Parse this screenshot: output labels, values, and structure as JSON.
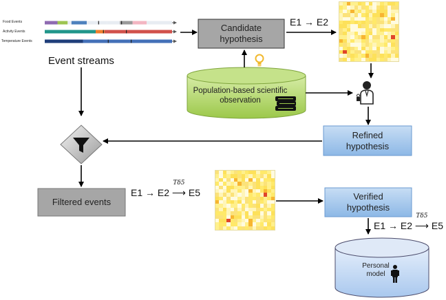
{
  "streams": [
    {
      "label": "Food Events",
      "segments": [
        {
          "color": "#8e6ab1",
          "w": 10
        },
        {
          "color": "#9dc451",
          "w": 8
        },
        {
          "color": "#e8ecf2",
          "w": 3
        },
        {
          "color": "#4e81bd",
          "w": 12
        },
        {
          "color": "#e8ecf2",
          "w": 6
        },
        {
          "color": "#e8ecf2",
          "w": 10
        },
        {
          "color": "#e8ecf2",
          "w": 10
        },
        {
          "color": "#9a9a9a",
          "w": 10
        },
        {
          "color": "#f3b6c2",
          "w": 11
        },
        {
          "color": "#e8ecf2",
          "w": 20
        }
      ]
    },
    {
      "label": "Activity Events",
      "segments": [
        {
          "color": "#21968a",
          "w": 40
        },
        {
          "color": "#f07f2e",
          "w": 7
        },
        {
          "color": "#d1524c",
          "w": 53
        }
      ]
    },
    {
      "label": "Temperature Events",
      "segments": [
        {
          "color": "#1f3e7a",
          "w": 30
        },
        {
          "color": "#4470b8",
          "w": 70
        }
      ]
    }
  ],
  "labels": {
    "event_streams": "Event streams",
    "candidate": "Candidate hypothesis",
    "population": "Population-based scientific observation",
    "refined": "Refined hypothesis",
    "filtered": "Filtered events",
    "verified": "Verified hypothesis",
    "personal": "Personal model"
  },
  "formulas": {
    "f1": "E1 → E2",
    "f2_left": "E1 → E2",
    "f2_arrow": "⟶",
    "f2_over": "Tδ5",
    "f2_right": "E5",
    "f3_left": "E1 → E2",
    "f3_arrow": "⟶",
    "f3_over": "Tδ5",
    "f3_right": "E5"
  },
  "colors": {
    "gray_box": "#a6a6a6",
    "blue_box": "#9cc2e5",
    "green_cyl": "#a9d05b",
    "personal_cyl": "#bcd5f0",
    "heat_base": "#fff3a6"
  },
  "heatmaps": [
    {
      "name": "heatmap-candidate",
      "seed": 3,
      "hot": [
        [
          9,
          14
        ],
        [
          13,
          1
        ]
      ]
    },
    {
      "name": "heatmap-filtered",
      "seed": 11,
      "hot": [
        [
          6,
          13
        ],
        [
          13,
          3
        ]
      ]
    }
  ]
}
